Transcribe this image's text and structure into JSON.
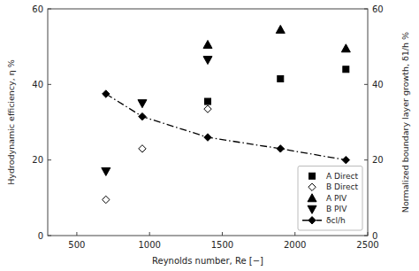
{
  "chart_data": {
    "type": "scatter",
    "xlabel": "Reynolds number, Re [−]",
    "ylabel": "Hydrodynamic efficiency, η %",
    "y2label": "Normalized boundary layer growth, δ1/h %",
    "xlim": [
      300,
      2500
    ],
    "ylim": [
      0,
      60
    ],
    "y2lim": [
      0,
      60
    ],
    "xticks": [
      500,
      1000,
      1500,
      2000,
      2500
    ],
    "yticks": [
      0,
      20,
      40,
      60
    ],
    "y2ticks": [
      0,
      20,
      40,
      60
    ],
    "grid": false,
    "legend": "lower right",
    "color": "black",
    "series": [
      {
        "name": "A Direct",
        "marker": "square",
        "x": [
          1400,
          1900,
          2350
        ],
        "values": [
          35.5,
          41.5,
          44.0
        ]
      },
      {
        "name": "B Direct",
        "marker": "diamond-open",
        "x": [
          700,
          950,
          1400
        ],
        "values": [
          9.5,
          23.0,
          33.5
        ]
      },
      {
        "name": "A PIV",
        "marker": "triangle-up",
        "x": [
          1400,
          1900,
          2350
        ],
        "values": [
          50.5,
          54.5,
          49.5
        ]
      },
      {
        "name": "B PIV",
        "marker": "triangle-down",
        "x": [
          700,
          950,
          1400
        ],
        "values": [
          17.0,
          35.0,
          46.5
        ]
      },
      {
        "name": "δcl/h",
        "type": "line",
        "line_style": "dashdot",
        "marker": "diamond",
        "x": [
          700,
          950,
          1400,
          1900,
          2350
        ],
        "values": [
          37.5,
          31.5,
          26.0,
          23.0,
          20.0
        ]
      }
    ]
  }
}
